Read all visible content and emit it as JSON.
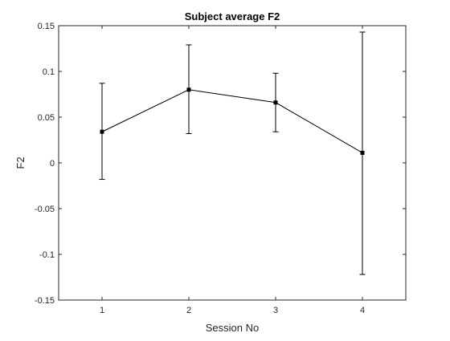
{
  "chart_data": {
    "type": "line",
    "title": "Subject average F2",
    "xlabel": "Session No",
    "ylabel": "F2",
    "xlim": [
      0.5,
      4.5
    ],
    "ylim": [
      -0.15,
      0.15
    ],
    "x_ticks": [
      1,
      2,
      3,
      4
    ],
    "x_tick_labels": [
      "1",
      "2",
      "3",
      "4"
    ],
    "y_ticks": [
      -0.15,
      -0.1,
      -0.05,
      0,
      0.05,
      0.1,
      0.15
    ],
    "y_tick_labels": [
      "-0.15",
      "-0.1",
      "-0.05",
      "0",
      "0.05",
      "0.1",
      "0.15"
    ],
    "grid": false,
    "series": [
      {
        "x": [
          1,
          2,
          3,
          4
        ],
        "y": [
          0.034,
          0.08,
          0.066,
          0.011
        ],
        "error_low": [
          -0.018,
          0.032,
          0.034,
          -0.122
        ],
        "error_high": [
          0.087,
          0.129,
          0.098,
          0.143
        ],
        "marker": "square",
        "color": "#000000"
      }
    ]
  }
}
